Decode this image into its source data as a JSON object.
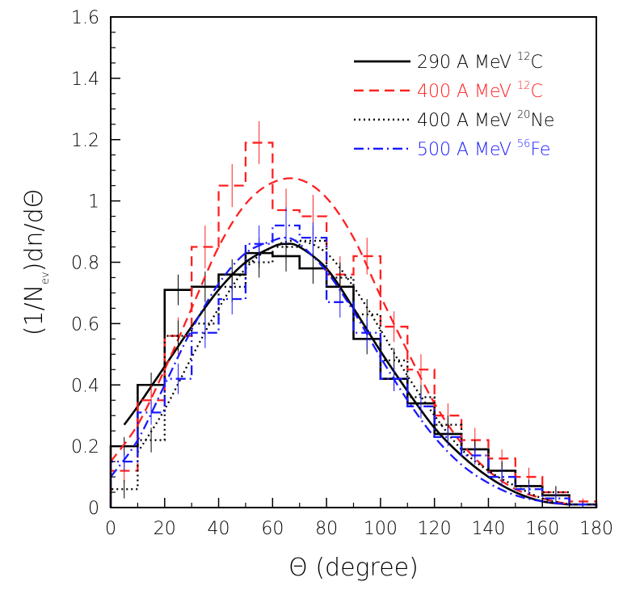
{
  "chart_data": {
    "type": "line",
    "xlabel": "Θ (degree)",
    "ylabel_parts": {
      "pre": "(1/N",
      "sub": "ev",
      "post": ")dn/dΘ"
    },
    "xlim": [
      0,
      180
    ],
    "ylim": [
      0,
      1.6
    ],
    "x_ticks": [
      0,
      20,
      40,
      60,
      80,
      100,
      120,
      140,
      160,
      180
    ],
    "y_ticks": [
      0,
      0.2,
      0.4,
      0.6,
      0.8,
      1,
      1.2,
      1.4,
      1.6
    ],
    "y_tick_labels": [
      "0",
      "0.2",
      "0.4",
      "0.6",
      "0.8",
      "1",
      "1.2",
      "1.4",
      "1.6"
    ],
    "grid": false,
    "legend_position": "top-right",
    "bin_edges": [
      0,
      10,
      20,
      30,
      40,
      50,
      60,
      70,
      80,
      90,
      100,
      110,
      120,
      130,
      140,
      150,
      160,
      170,
      180
    ],
    "series": [
      {
        "name_prefix": "290 A MeV ",
        "name_sup": "12",
        "name_suffix": "C",
        "color": "#000000",
        "dash": "solid",
        "hist": [
          0.2,
          0.4,
          0.71,
          0.72,
          0.76,
          0.83,
          0.82,
          0.78,
          0.72,
          0.55,
          0.42,
          0.34,
          0.24,
          0.19,
          0.12,
          0.07,
          0.04,
          0.01
        ],
        "errors": [
          0.03,
          0.04,
          0.05,
          0.05,
          0.05,
          0.05,
          0.05,
          0.05,
          0.05,
          0.05,
          0.04,
          0.04,
          0.03,
          0.03,
          0.03,
          0.02,
          0.02,
          0.01
        ],
        "fit": {
          "x": [
            5,
            10,
            20,
            30,
            40,
            50,
            60,
            65,
            70,
            80,
            90,
            100,
            110,
            120,
            130,
            140,
            150,
            160,
            170
          ],
          "y": [
            0.27,
            0.33,
            0.46,
            0.59,
            0.71,
            0.8,
            0.85,
            0.86,
            0.85,
            0.78,
            0.65,
            0.51,
            0.38,
            0.26,
            0.17,
            0.1,
            0.05,
            0.02,
            0.01
          ]
        }
      },
      {
        "name_prefix": "400 A MeV ",
        "name_sup": "12",
        "name_suffix": "C",
        "color": "#ff2020",
        "dash": "12,7",
        "hist": [
          0.12,
          0.35,
          0.56,
          0.85,
          1.05,
          1.19,
          0.97,
          0.95,
          0.76,
          0.82,
          0.59,
          0.45,
          0.3,
          0.22,
          0.16,
          0.1,
          0.05,
          0.02
        ],
        "errors": [
          0.04,
          0.05,
          0.06,
          0.07,
          0.07,
          0.07,
          0.07,
          0.07,
          0.06,
          0.06,
          0.05,
          0.05,
          0.04,
          0.04,
          0.03,
          0.03,
          0.02,
          0.01
        ],
        "fit": {
          "x": [
            0,
            10,
            20,
            30,
            40,
            50,
            60,
            70,
            80,
            90,
            100,
            110,
            120,
            130,
            140,
            150,
            160,
            170
          ],
          "y": [
            0.15,
            0.27,
            0.45,
            0.65,
            0.85,
            0.99,
            1.06,
            1.07,
            1.01,
            0.88,
            0.69,
            0.51,
            0.34,
            0.21,
            0.12,
            0.06,
            0.03,
            0.01
          ]
        }
      },
      {
        "name_prefix": "400 A MeV ",
        "name_sup": "20",
        "name_suffix": "Ne",
        "color": "#000000",
        "dash": "2,4",
        "hist": [
          0.06,
          0.22,
          0.56,
          0.6,
          0.72,
          0.8,
          0.85,
          0.87,
          0.75,
          0.63,
          0.48,
          0.36,
          0.27,
          0.19,
          0.12,
          0.07,
          0.05,
          0.01
        ],
        "errors": [
          0.03,
          0.04,
          0.05,
          0.05,
          0.05,
          0.05,
          0.05,
          0.05,
          0.05,
          0.05,
          0.04,
          0.04,
          0.03,
          0.03,
          0.03,
          0.02,
          0.02,
          0.01
        ],
        "fit": {
          "x": [
            10,
            20,
            30,
            40,
            50,
            60,
            70,
            80,
            90,
            100,
            110,
            120,
            130,
            140,
            150,
            160,
            170
          ],
          "y": [
            0.18,
            0.32,
            0.49,
            0.65,
            0.78,
            0.85,
            0.87,
            0.83,
            0.72,
            0.58,
            0.43,
            0.3,
            0.19,
            0.12,
            0.07,
            0.03,
            0.01
          ]
        }
      },
      {
        "name_prefix": "500 A MeV ",
        "name_sup": "56",
        "name_suffix": "Fe",
        "color": "#1a1aff",
        "dash": "12,5,2,5",
        "hist": [
          0.15,
          0.31,
          0.42,
          0.57,
          0.68,
          0.86,
          0.92,
          0.88,
          0.67,
          0.57,
          0.42,
          0.33,
          0.23,
          0.17,
          0.1,
          0.06,
          0.03,
          0.01
        ],
        "errors": [
          0.03,
          0.04,
          0.05,
          0.05,
          0.05,
          0.06,
          0.06,
          0.05,
          0.05,
          0.05,
          0.04,
          0.04,
          0.03,
          0.03,
          0.03,
          0.02,
          0.02,
          0.01
        ],
        "fit": {
          "x": [
            0,
            10,
            20,
            30,
            40,
            50,
            60,
            65,
            70,
            80,
            90,
            100,
            110,
            120,
            130,
            140,
            150,
            160,
            170
          ],
          "y": [
            0.1,
            0.22,
            0.4,
            0.58,
            0.73,
            0.83,
            0.87,
            0.88,
            0.86,
            0.77,
            0.64,
            0.49,
            0.35,
            0.23,
            0.14,
            0.08,
            0.04,
            0.02,
            0.01
          ]
        }
      }
    ]
  }
}
